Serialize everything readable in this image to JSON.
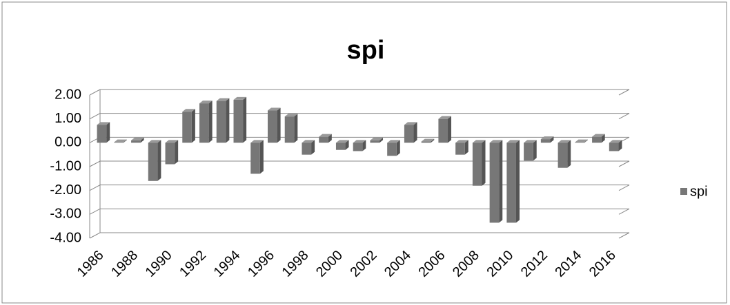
{
  "chart_data": {
    "type": "bar",
    "title": "spi",
    "categories": [
      "1986",
      null,
      "1988",
      null,
      "1990",
      null,
      "1992",
      null,
      "1994",
      null,
      "1996",
      null,
      "1998",
      null,
      "2000",
      null,
      "2002",
      null,
      "2004",
      null,
      "2006",
      null,
      "2008",
      null,
      "2010",
      null,
      "2012",
      null,
      "2014",
      null,
      "2016"
    ],
    "series": [
      {
        "name": "spi",
        "color": "#777777",
        "values": [
          0.75,
          0.02,
          0.1,
          -1.6,
          -0.9,
          1.3,
          1.65,
          1.75,
          1.8,
          -1.3,
          1.35,
          1.1,
          -0.5,
          0.25,
          -0.3,
          -0.35,
          0.1,
          -0.55,
          0.75,
          0.05,
          1.0,
          -0.5,
          -1.8,
          -3.35,
          -3.35,
          -0.75,
          0.15,
          -1.05,
          0.02,
          0.25,
          -0.35
        ]
      }
    ],
    "ylim": [
      -4,
      2
    ],
    "yticks": [
      {
        "value": -4,
        "label": "-4.00"
      },
      {
        "value": -3,
        "label": "-3.00"
      },
      {
        "value": -2,
        "label": "-2.00"
      },
      {
        "value": -1,
        "label": "-1.00"
      },
      {
        "value": 0,
        "label": "0.00"
      },
      {
        "value": 1,
        "label": "1.00"
      },
      {
        "value": 2,
        "label": "2.00"
      }
    ],
    "grid": true,
    "legend": "right"
  }
}
